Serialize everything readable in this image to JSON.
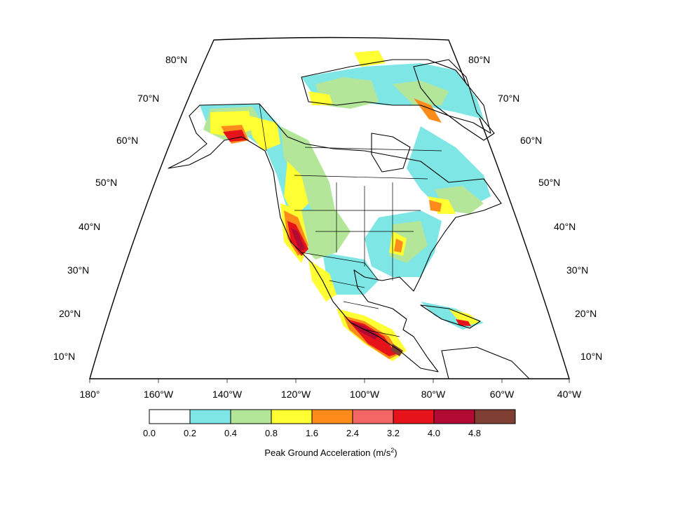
{
  "map": {
    "lat_labels": [
      "80°N",
      "70°N",
      "60°N",
      "50°N",
      "40°N",
      "30°N",
      "20°N",
      "10°N"
    ],
    "lon_labels": [
      "180°",
      "160°W",
      "140°W",
      "120°W",
      "100°W",
      "80°W",
      "60°W",
      "40°W"
    ],
    "region_bounds": {
      "lon": [
        -180,
        -40
      ],
      "lat": [
        5,
        85
      ]
    }
  },
  "legend": {
    "title": "Peak Ground Acceleration (m/s",
    "title_sup": "2",
    "title_close": ")",
    "tick_labels": [
      "0.0",
      "0.2",
      "0.4",
      "0.8",
      "1.6",
      "2.4",
      "3.2",
      "4.0",
      "4.8"
    ],
    "colors": [
      "#ffffff",
      "#7fe6e6",
      "#b3e699",
      "#ffff33",
      "#ff8c1a",
      "#f26666",
      "#e6141a",
      "#b30a33",
      "#7f4033"
    ]
  }
}
